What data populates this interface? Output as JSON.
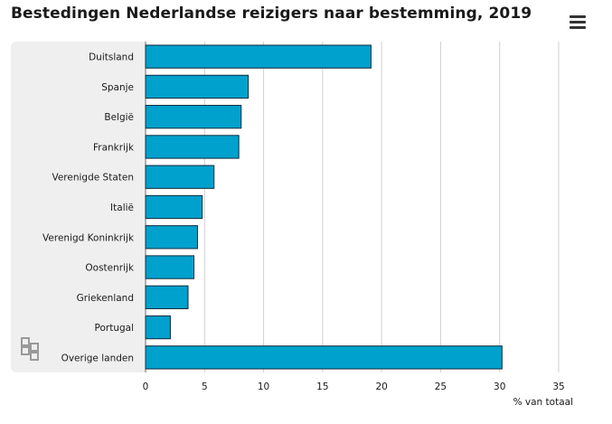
{
  "title": "Bestedingen Nederlandse reizigers naar bestemming, 2019",
  "menu_icon": "hamburger-menu-icon",
  "logo_icon": "cbs-logo-icon",
  "colors": {
    "bar": "#00a1cd",
    "bar_stroke": "#0a2a3a",
    "grid": "#d0d0d0",
    "panel": "#efefef"
  },
  "chart_data": {
    "type": "bar",
    "orientation": "horizontal",
    "title": "Bestedingen Nederlandse reizigers naar bestemming, 2019",
    "xlabel": "% van totaal",
    "ylabel": "",
    "categories": [
      "Duitsland",
      "Spanje",
      "België",
      "Frankrijk",
      "Verenigde Staten",
      "Italië",
      "Verenigd Koninkrijk",
      "Oostenrijk",
      "Griekenland",
      "Portugal",
      "Overige landen"
    ],
    "values": [
      19.1,
      8.7,
      8.1,
      7.9,
      5.8,
      4.8,
      4.4,
      4.1,
      3.6,
      2.1,
      30.2
    ],
    "xlim": [
      0,
      35
    ],
    "xticks": [
      0,
      5,
      10,
      15,
      20,
      25,
      30,
      35
    ],
    "grid": true,
    "legend": "none"
  }
}
